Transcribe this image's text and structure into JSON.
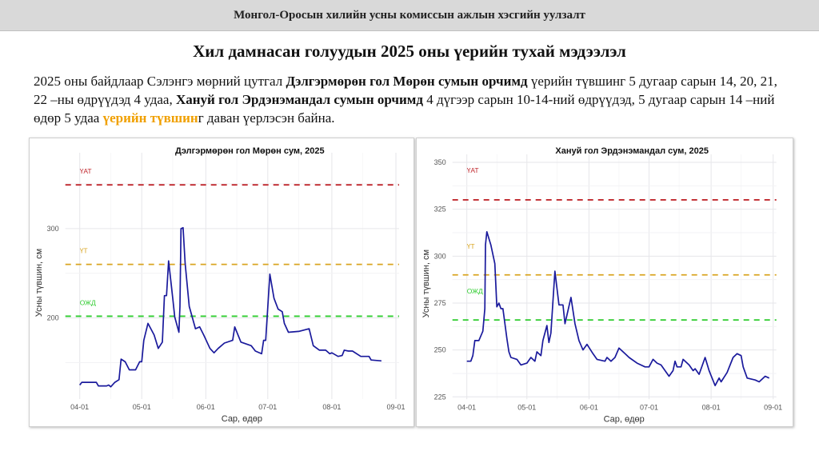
{
  "header": {
    "title": "Монгол-Оросын хилийн усны комиссын ажлын хэсгийн уулзалт"
  },
  "page_title": "Хил дамнасан голуудын 2025 оны үерийн тухай мэдээлэл",
  "paragraph": [
    {
      "t": "2025 оны байдлаар Сэлэнгэ мөрний цутгал ",
      "s": "n"
    },
    {
      "t": "Дэлгэрмөрөн гол Мөрөн сумын орчимд",
      "s": "b"
    },
    {
      "t": " үерийн түвшинг 5 дугаар сарын 14, 20, 21, 22 –ны өдрүүдэд 4 удаа, ",
      "s": "n"
    },
    {
      "t": "Хануй гол Эрдэнэмандал сумын орчимд",
      "s": "b"
    },
    {
      "t": " 4 дүгээр сарын 10-14-ний өдрүүдэд, 5 дугаар сарын 14 –ний  өдөр 5 удаа ",
      "s": "n"
    },
    {
      "t": "үерийн түвшин",
      "s": "hl"
    },
    {
      "t": "г даван үерлэсэн байна.",
      "s": "n"
    }
  ],
  "chart_data": [
    {
      "type": "line",
      "title": "Дэлгэрмөрөн гол Мөрөн сум, 2025",
      "xlabel": "Сар, өдөр",
      "ylabel": "Усны түвшин, см",
      "xticks": [
        "04-01",
        "05-01",
        "06-01",
        "07-01",
        "08-01",
        "09-01"
      ],
      "yticks": [
        200,
        300
      ],
      "ylim": [
        112,
        376
      ],
      "xlim": [
        "2025-04-01",
        "2025-09-01"
      ],
      "grid": true,
      "line_color": "#1a1a9c",
      "thresholds": [
        {
          "label": "ҮАТ",
          "value": 349,
          "color": "#c0272d"
        },
        {
          "label": "ҮТ",
          "value": 260,
          "color": "#d9a521"
        },
        {
          "label": "ОЖД",
          "value": 202,
          "color": "#2ecc2e"
        }
      ],
      "series": [
        {
          "days_from": "2025-04-01",
          "points": [
            [
              0,
              125
            ],
            [
              1,
              128
            ],
            [
              8,
              128
            ],
            [
              9,
              124
            ],
            [
              13,
              124
            ],
            [
              14,
              125
            ],
            [
              15,
              123
            ],
            [
              17,
              128
            ],
            [
              19,
              131
            ],
            [
              20,
              154
            ],
            [
              22,
              151
            ],
            [
              24,
              142
            ],
            [
              27,
              142
            ],
            [
              29,
              151
            ],
            [
              30,
              151
            ],
            [
              31,
              175
            ],
            [
              33,
              194
            ],
            [
              36,
              181
            ],
            [
              38,
              166
            ],
            [
              40,
              173
            ],
            [
              41,
              225
            ],
            [
              42,
              225
            ],
            [
              43,
              264
            ],
            [
              44,
              243
            ],
            [
              45,
              222
            ],
            [
              46,
              201
            ],
            [
              48,
              184
            ],
            [
              48.5,
              213
            ],
            [
              49,
              300
            ],
            [
              50,
              301
            ],
            [
              51,
              261
            ],
            [
              53,
              213
            ],
            [
              56,
              188
            ],
            [
              58,
              190
            ],
            [
              60,
              181
            ],
            [
              63,
              166
            ],
            [
              65,
              161
            ],
            [
              67,
              166
            ],
            [
              70,
              172
            ],
            [
              74,
              175
            ],
            [
              75,
              190
            ],
            [
              78,
              173
            ],
            [
              83,
              169
            ],
            [
              85,
              163
            ],
            [
              88,
              160
            ],
            [
              89,
              175
            ],
            [
              90,
              175
            ],
            [
              92,
              249
            ],
            [
              94,
              222
            ],
            [
              96,
              210
            ],
            [
              98,
              207
            ],
            [
              99,
              194
            ],
            [
              101,
              184
            ],
            [
              106,
              185
            ],
            [
              111,
              188
            ],
            [
              113,
              169
            ],
            [
              116,
              164
            ],
            [
              119,
              164
            ],
            [
              121,
              160
            ],
            [
              122,
              161
            ],
            [
              125,
              157
            ],
            [
              127,
              158
            ],
            [
              128,
              164
            ],
            [
              130,
              163
            ],
            [
              132,
              163
            ],
            [
              136,
              157
            ],
            [
              140,
              157
            ],
            [
              141,
              153
            ],
            [
              146,
              152
            ]
          ]
        }
      ]
    },
    {
      "type": "line",
      "title": "Хануй гол Эрдэнэмандал сум, 2025",
      "xlabel": "Сар, өдөр",
      "ylabel": "Усны түвшин, см",
      "xticks": [
        "04-01",
        "05-01",
        "06-01",
        "07-01",
        "08-01",
        "09-01"
      ],
      "yticks": [
        225,
        250,
        275,
        300,
        325,
        350
      ],
      "ylim": [
        225,
        350
      ],
      "xlim": [
        "2025-04-01",
        "2025-09-01"
      ],
      "grid": true,
      "line_color": "#1a1a9c",
      "thresholds": [
        {
          "label": "ҮАТ",
          "value": 330,
          "color": "#c0272d"
        },
        {
          "label": "ҮТ",
          "value": 290,
          "color": "#d9a521"
        },
        {
          "label": "ОЖД",
          "value": 266,
          "color": "#2ecc2e"
        }
      ],
      "series": [
        {
          "days_from": "2025-04-01",
          "points": [
            [
              0,
              244
            ],
            [
              2,
              244
            ],
            [
              3,
              247
            ],
            [
              4,
              255
            ],
            [
              6,
              255
            ],
            [
              8,
              260
            ],
            [
              9,
              272
            ],
            [
              9.3,
              306
            ],
            [
              10,
              313
            ],
            [
              12,
              306
            ],
            [
              14,
              296
            ],
            [
              15,
              273
            ],
            [
              16,
              275
            ],
            [
              17,
              272
            ],
            [
              18,
              272
            ],
            [
              20,
              256
            ],
            [
              21,
              249
            ],
            [
              22,
              246
            ],
            [
              25,
              245
            ],
            [
              27,
              242
            ],
            [
              30,
              243
            ],
            [
              32,
              246
            ],
            [
              34,
              244
            ],
            [
              35,
              249
            ],
            [
              37,
              247
            ],
            [
              38,
              255
            ],
            [
              40,
              263
            ],
            [
              41,
              254
            ],
            [
              42,
              259
            ],
            [
              44,
              292
            ],
            [
              46,
              274
            ],
            [
              48,
              274
            ],
            [
              49,
              264
            ],
            [
              52,
              278
            ],
            [
              54,
              264
            ],
            [
              56,
              255
            ],
            [
              58,
              250
            ],
            [
              60,
              253
            ],
            [
              63,
              248
            ],
            [
              65,
              245
            ],
            [
              69,
              244
            ],
            [
              70,
              246
            ],
            [
              72,
              244
            ],
            [
              74,
              246
            ],
            [
              76,
              251
            ],
            [
              79,
              248
            ],
            [
              81,
              246
            ],
            [
              85,
              243
            ],
            [
              89,
              241
            ],
            [
              91,
              241
            ],
            [
              93,
              245
            ],
            [
              95,
              243
            ],
            [
              97,
              242
            ],
            [
              101,
              236
            ],
            [
              103,
              239
            ],
            [
              104,
              244
            ],
            [
              105,
              241
            ],
            [
              107,
              241
            ],
            [
              108,
              245
            ],
            [
              111,
              242
            ],
            [
              113,
              239
            ],
            [
              114,
              240
            ],
            [
              116,
              237
            ],
            [
              119,
              246
            ],
            [
              121,
              239
            ],
            [
              124,
              231
            ],
            [
              126,
              235
            ],
            [
              127,
              233
            ],
            [
              130,
              238
            ],
            [
              133,
              246
            ],
            [
              135,
              248
            ],
            [
              137,
              247
            ],
            [
              138,
              241
            ],
            [
              140,
              235
            ],
            [
              144,
              234
            ],
            [
              146,
              233
            ],
            [
              149,
              236
            ],
            [
              151,
              235
            ]
          ]
        }
      ]
    }
  ]
}
